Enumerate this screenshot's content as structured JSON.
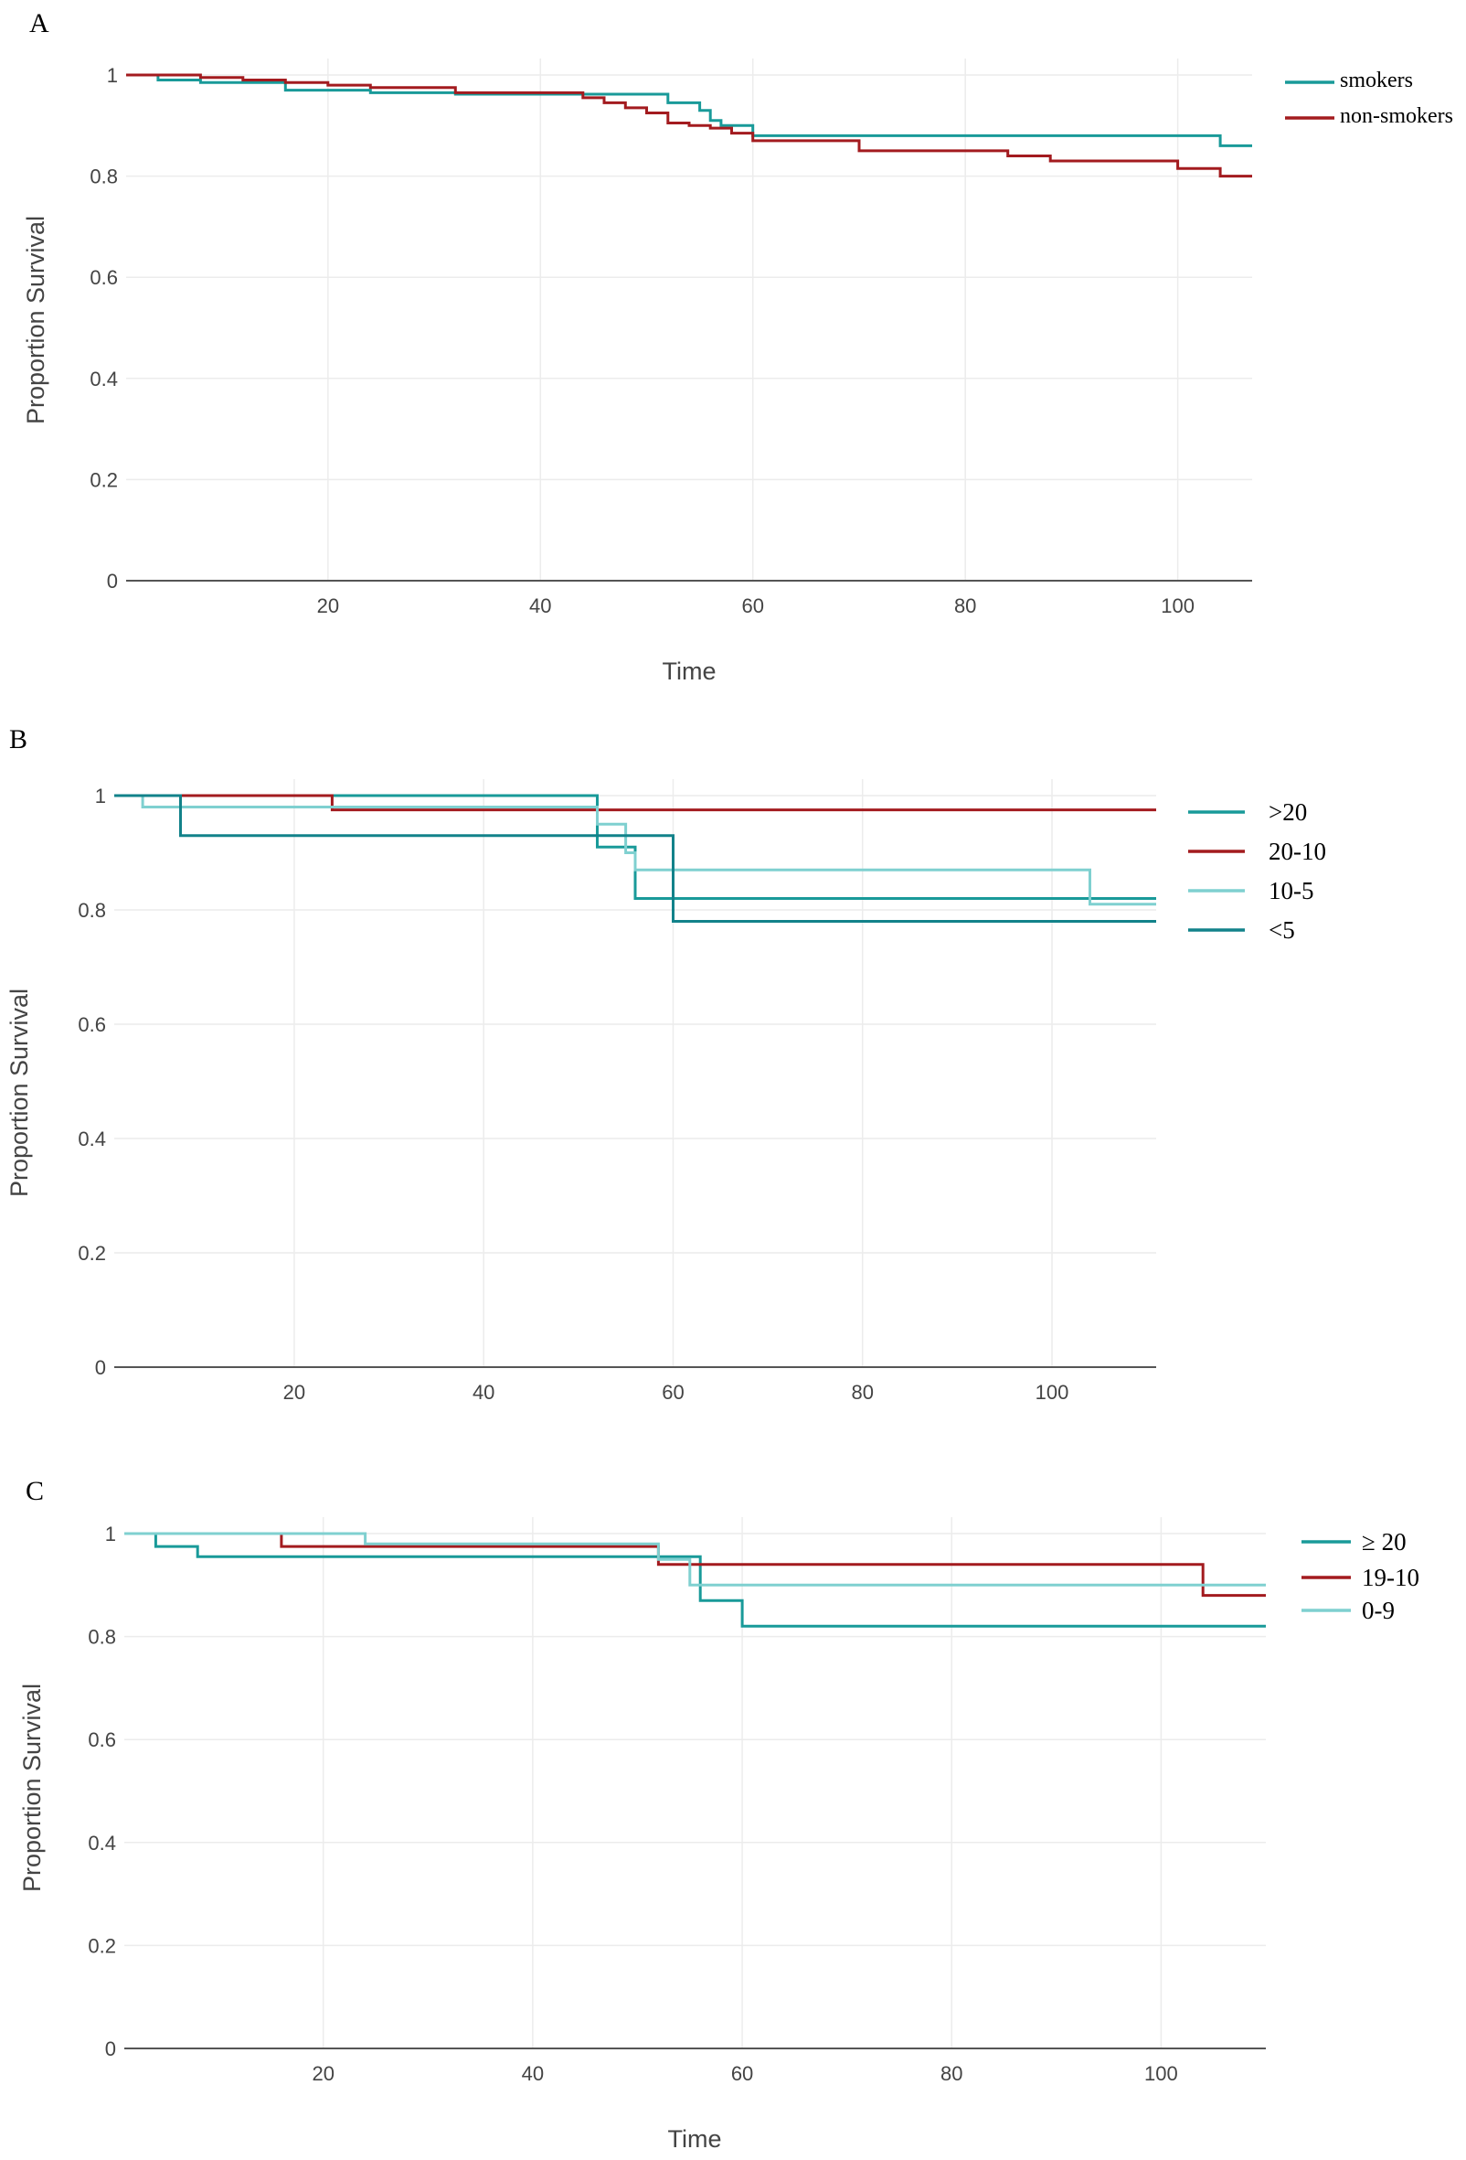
{
  "figure": {
    "colors": {
      "teal": "#199a99",
      "dark_red": "#a31b1f",
      "light_teal": "#7fd0d0",
      "dark_teal": "#12828a",
      "axis": "#555555",
      "grid": "#ececec"
    }
  },
  "chart_data": [
    {
      "panel": "A",
      "type": "line",
      "step": true,
      "xlabel": "Time",
      "ylabel": "Proportion Survival",
      "xlim": [
        1,
        107
      ],
      "ylim": [
        0,
        1
      ],
      "xticks": [
        "20",
        "40",
        "60",
        "80",
        "100"
      ],
      "yticks": [
        "0",
        "0.2",
        "0.4",
        "0.6",
        "0.8",
        "1"
      ],
      "series": [
        {
          "name": "smokers",
          "color": "#199a99",
          "x": [
            1,
            4,
            8,
            16,
            24,
            32,
            40,
            52,
            55,
            56,
            57,
            60,
            104,
            107
          ],
          "y": [
            1,
            0.99,
            0.985,
            0.97,
            0.965,
            0.962,
            0.962,
            0.945,
            0.93,
            0.91,
            0.9,
            0.88,
            0.86,
            0.86
          ]
        },
        {
          "name": "non-smokers",
          "color": "#a31b1f",
          "x": [
            1,
            8,
            12,
            16,
            20,
            24,
            32,
            44,
            46,
            48,
            50,
            52,
            54,
            56,
            58,
            60,
            70,
            84,
            88,
            100,
            104,
            107
          ],
          "y": [
            1,
            0.995,
            0.99,
            0.985,
            0.98,
            0.975,
            0.965,
            0.955,
            0.945,
            0.935,
            0.925,
            0.905,
            0.9,
            0.895,
            0.885,
            0.87,
            0.85,
            0.84,
            0.83,
            0.815,
            0.8,
            0.8
          ]
        }
      ]
    },
    {
      "panel": "B",
      "type": "line",
      "step": true,
      "xlabel": "",
      "ylabel": "Proportion Survival",
      "xlim": [
        1,
        111
      ],
      "ylim": [
        0,
        1
      ],
      "xticks": [
        "20",
        "40",
        "60",
        "80",
        "100"
      ],
      "yticks": [
        "0",
        "0.2",
        "0.4",
        "0.6",
        "0.8",
        "1"
      ],
      "series": [
        {
          "name": ">20",
          "color": "#199a99",
          "x": [
            1,
            52,
            56,
            111
          ],
          "y": [
            1,
            0.91,
            0.82,
            0.82
          ]
        },
        {
          "name": "20-10",
          "color": "#a31b1f",
          "x": [
            1,
            24,
            111
          ],
          "y": [
            1,
            0.975,
            0.975
          ]
        },
        {
          "name": "10-5",
          "color": "#7fd0d0",
          "x": [
            1,
            4,
            52,
            55,
            56,
            104,
            111
          ],
          "y": [
            1,
            0.98,
            0.95,
            0.9,
            0.87,
            0.81,
            0.81
          ]
        },
        {
          "name": "<5",
          "color": "#12828a",
          "x": [
            1,
            8,
            60,
            111
          ],
          "y": [
            1,
            0.93,
            0.78,
            0.78
          ]
        }
      ]
    },
    {
      "panel": "C",
      "type": "line",
      "step": true,
      "xlabel": "Time",
      "ylabel": "Proportion Survival",
      "xlim": [
        1,
        110
      ],
      "ylim": [
        0,
        1
      ],
      "xticks": [
        "20",
        "40",
        "60",
        "80",
        "100"
      ],
      "yticks": [
        "0",
        "0.2",
        "0.4",
        "0.6",
        "0.8",
        "1"
      ],
      "series": [
        {
          "name": "≥ 20",
          "color": "#199a99",
          "x": [
            1,
            4,
            8,
            52,
            56,
            60,
            110
          ],
          "y": [
            1,
            0.975,
            0.955,
            0.955,
            0.87,
            0.82,
            0.82
          ]
        },
        {
          "name": "19-10",
          "color": "#a31b1f",
          "x": [
            1,
            16,
            52,
            104,
            110
          ],
          "y": [
            1,
            0.975,
            0.94,
            0.88,
            0.88
          ]
        },
        {
          "name": "0-9",
          "color": "#7fd0d0",
          "x": [
            1,
            24,
            52,
            55,
            110
          ],
          "y": [
            1,
            0.98,
            0.95,
            0.9,
            0.9
          ]
        }
      ]
    }
  ]
}
